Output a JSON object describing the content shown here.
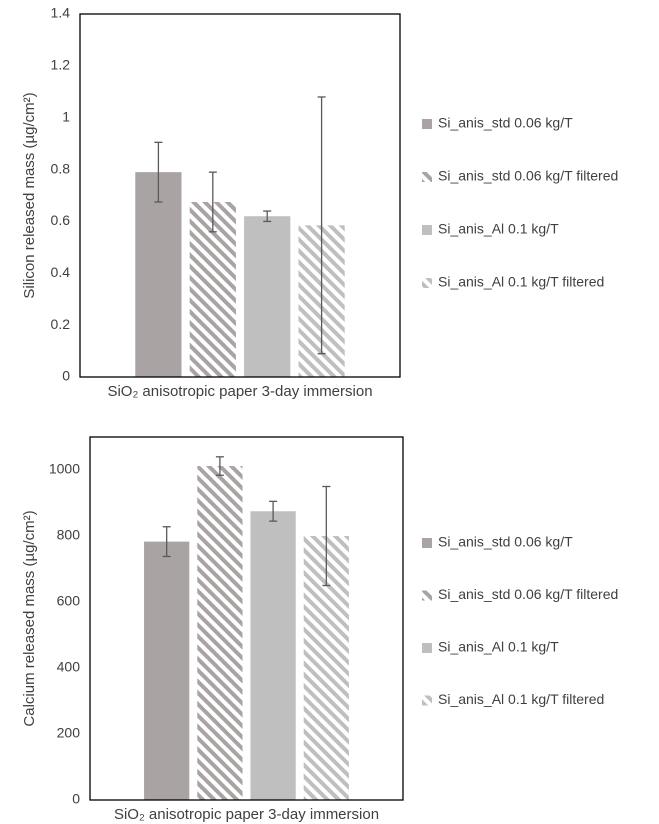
{
  "chart_data": [
    {
      "type": "bar",
      "ylabel": "Silicon released mass (µg/cm²)",
      "categories": [
        "SiO₂ anisotropic paper 3-day immersion"
      ],
      "ylim": [
        0,
        1.4
      ],
      "yticks": [
        0,
        0.2,
        0.4,
        0.6,
        0.8,
        1,
        1.2,
        1.4
      ],
      "grid": false,
      "legend": "right",
      "series": [
        {
          "name": "Si_anis_std 0.06 kg/T",
          "color": "#a9a3a3",
          "hatch": false,
          "values": [
            0.79
          ],
          "errors": [
            0.115
          ]
        },
        {
          "name": "Si_anis_std 0.06 kg/T filtered",
          "color": "#a9a3a3",
          "hatch": true,
          "values": [
            0.675
          ],
          "errors": [
            0.115
          ]
        },
        {
          "name": "Si_anis_Al 0.1 kg/T",
          "color": "#bfbfbf",
          "hatch": false,
          "values": [
            0.62
          ],
          "errors": [
            0.02
          ]
        },
        {
          "name": "Si_anis_Al 0.1 kg/T filtered",
          "color": "#bfbfbf",
          "hatch": true,
          "values": [
            0.585
          ],
          "errors": [
            0.495
          ]
        }
      ]
    },
    {
      "type": "bar",
      "ylabel": "Calcium  released mass (µg/cm²)",
      "categories": [
        "SiO₂ anisotropic paper 3-day immersion"
      ],
      "ylim": [
        0,
        1100
      ],
      "yticks": [
        0,
        200,
        400,
        600,
        800,
        1000
      ],
      "grid": false,
      "legend": "right",
      "series": [
        {
          "name": "Si_anis_std 0.06 kg/T",
          "color": "#a9a3a3",
          "hatch": false,
          "values": [
            783
          ],
          "errors": [
            45
          ]
        },
        {
          "name": "Si_anis_std 0.06 kg/T filtered",
          "color": "#a9a3a3",
          "hatch": true,
          "values": [
            1012
          ],
          "errors": [
            28
          ]
        },
        {
          "name": "Si_anis_Al 0.1 kg/T",
          "color": "#bfbfbf",
          "hatch": false,
          "values": [
            875
          ],
          "errors": [
            30
          ]
        },
        {
          "name": "Si_anis_Al 0.1 kg/T filtered",
          "color": "#bfbfbf",
          "hatch": true,
          "values": [
            800
          ],
          "errors": [
            150
          ]
        }
      ]
    }
  ]
}
